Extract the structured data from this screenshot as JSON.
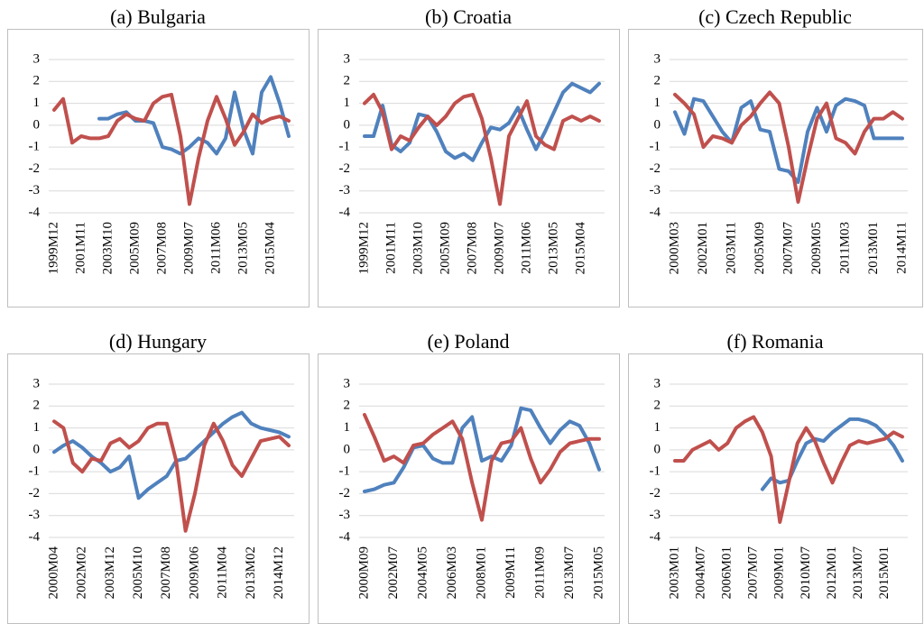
{
  "chart_data": [
    {
      "type": "line",
      "title": "(a) Bulgaria",
      "categories": [
        "1999M12",
        null,
        null,
        "2001M11",
        null,
        null,
        "2003M10",
        null,
        null,
        "2005M09",
        null,
        null,
        "2007M08",
        null,
        null,
        "2009M07",
        null,
        null,
        "2011M06",
        null,
        null,
        "2013M05",
        null,
        null,
        "2015M04",
        null,
        null
      ],
      "series": [
        {
          "color": "#4f81bd",
          "values": [
            null,
            null,
            null,
            null,
            null,
            0.3,
            0.3,
            0.5,
            0.6,
            0.2,
            0.2,
            0.1,
            -1.0,
            -1.1,
            -1.3,
            -1.0,
            -0.6,
            -0.8,
            -1.3,
            -0.6,
            1.5,
            -0.2,
            -1.3,
            1.5,
            2.2,
            1.0,
            -0.5
          ]
        },
        {
          "color": "#c0504d",
          "values": [
            0.7,
            1.2,
            -0.8,
            -0.5,
            -0.6,
            -0.6,
            -0.5,
            0.2,
            0.5,
            0.3,
            0.2,
            1.0,
            1.3,
            1.4,
            -0.5,
            -3.6,
            -1.5,
            0.2,
            1.3,
            0.3,
            -0.9,
            -0.3,
            0.5,
            0.1,
            0.3,
            0.4,
            0.2
          ]
        }
      ],
      "ylim": [
        -4,
        3
      ],
      "yticks": [
        3,
        2,
        1,
        0,
        -1,
        -2,
        -3,
        -4
      ],
      "grid": true
    },
    {
      "type": "line",
      "title": "(b) Croatia",
      "categories": [
        "1999M12",
        null,
        null,
        "2001M11",
        null,
        null,
        "2003M10",
        null,
        null,
        "2005M09",
        null,
        null,
        "2007M08",
        null,
        null,
        "2009M07",
        null,
        null,
        "2011M06",
        null,
        null,
        "2013M05",
        null,
        null,
        "2015M04",
        null,
        null
      ],
      "series": [
        {
          "color": "#4f81bd",
          "values": [
            -0.5,
            -0.5,
            0.9,
            -0.9,
            -1.2,
            -0.8,
            0.5,
            0.4,
            -0.3,
            -1.2,
            -1.5,
            -1.3,
            -1.6,
            -0.8,
            -0.1,
            -0.2,
            0.1,
            0.8,
            -0.2,
            -1.1,
            -0.3,
            0.6,
            1.5,
            1.9,
            1.7,
            1.5,
            1.9
          ]
        },
        {
          "color": "#c0504d",
          "values": [
            1.0,
            1.4,
            0.6,
            -1.1,
            -0.5,
            -0.7,
            -0.1,
            0.4,
            0.0,
            0.4,
            1.0,
            1.3,
            1.4,
            0.3,
            -1.5,
            -3.6,
            -0.5,
            0.3,
            1.1,
            -0.5,
            -0.9,
            -1.1,
            0.2,
            0.4,
            0.2,
            0.4,
            0.2
          ]
        }
      ],
      "ylim": [
        -4,
        3
      ],
      "yticks": [
        3,
        2,
        1,
        0,
        -1,
        -2,
        -3,
        -4
      ],
      "grid": true
    },
    {
      "type": "line",
      "title": "(c) Czech Republic",
      "categories": [
        "2000M03",
        null,
        null,
        "2002M01",
        null,
        null,
        "2003M11",
        null,
        null,
        "2005M09",
        null,
        null,
        "2007M07",
        null,
        null,
        "2009M05",
        null,
        null,
        "2011M03",
        null,
        null,
        "2013M01",
        null,
        null,
        "2014M11"
      ],
      "series": [
        {
          "color": "#4f81bd",
          "values": [
            0.6,
            -0.4,
            1.2,
            1.1,
            0.4,
            -0.3,
            -0.8,
            0.8,
            1.1,
            -0.2,
            -0.3,
            -2.0,
            -2.1,
            -2.6,
            -0.3,
            0.8,
            -0.3,
            0.9,
            1.2,
            1.1,
            0.9,
            -0.6,
            -0.6,
            -0.6,
            -0.6
          ]
        },
        {
          "color": "#c0504d",
          "values": [
            1.4,
            1.0,
            0.5,
            -1.0,
            -0.5,
            -0.6,
            -0.8,
            0.0,
            0.4,
            1.0,
            1.5,
            1.0,
            -1.0,
            -3.5,
            -1.5,
            0.3,
            1.0,
            -0.6,
            -0.8,
            -1.3,
            -0.3,
            0.3,
            0.3,
            0.6,
            0.3
          ]
        }
      ],
      "ylim": [
        -4,
        3
      ],
      "yticks": [
        3,
        2,
        1,
        0,
        -1,
        -2,
        -3,
        -4
      ],
      "grid": true
    },
    {
      "type": "line",
      "title": "(d) Hungary",
      "categories": [
        "2000M04",
        null,
        null,
        "2002M02",
        null,
        null,
        "2003M12",
        null,
        null,
        "2005M10",
        null,
        null,
        "2007M08",
        null,
        null,
        "2009M06",
        null,
        null,
        "2011M04",
        null,
        null,
        "2013M02",
        null,
        null,
        "2014M12",
        null
      ],
      "series": [
        {
          "color": "#4f81bd",
          "values": [
            -0.1,
            0.2,
            0.4,
            0.1,
            -0.3,
            -0.6,
            -1.0,
            -0.8,
            -0.3,
            -2.2,
            -1.8,
            -1.5,
            -1.2,
            -0.5,
            -0.4,
            0.0,
            0.4,
            0.8,
            1.2,
            1.5,
            1.7,
            1.2,
            1.0,
            0.9,
            0.8,
            0.6
          ]
        },
        {
          "color": "#c0504d",
          "values": [
            1.3,
            1.0,
            -0.6,
            -1.0,
            -0.4,
            -0.5,
            0.3,
            0.5,
            0.1,
            0.4,
            1.0,
            1.2,
            1.2,
            -0.5,
            -3.7,
            -2.0,
            0.2,
            1.2,
            0.4,
            -0.7,
            -1.2,
            -0.4,
            0.4,
            0.5,
            0.6,
            0.2
          ]
        }
      ],
      "ylim": [
        -4,
        3
      ],
      "yticks": [
        3,
        2,
        1,
        0,
        -1,
        -2,
        -3,
        -4
      ],
      "grid": true
    },
    {
      "type": "line",
      "title": "(e) Poland",
      "categories": [
        "2000M09",
        null,
        null,
        "2002M07",
        null,
        null,
        "2004M05",
        null,
        null,
        "2006M03",
        null,
        null,
        "2008M01",
        null,
        null,
        "2009M11",
        null,
        null,
        "2011M09",
        null,
        null,
        "2013M07",
        null,
        null,
        "2015M05"
      ],
      "series": [
        {
          "color": "#4f81bd",
          "values": [
            -1.9,
            -1.8,
            -1.6,
            -1.5,
            -0.8,
            0.1,
            0.2,
            -0.4,
            -0.6,
            -0.6,
            1.0,
            1.5,
            -0.5,
            -0.3,
            -0.5,
            0.2,
            1.9,
            1.8,
            1.0,
            0.3,
            0.9,
            1.3,
            1.1,
            0.3,
            -0.9
          ]
        },
        {
          "color": "#c0504d",
          "values": [
            1.6,
            0.6,
            -0.5,
            -0.3,
            -0.6,
            0.2,
            0.3,
            0.7,
            1.0,
            1.3,
            0.5,
            -1.5,
            -3.2,
            -0.5,
            0.3,
            0.4,
            1.0,
            -0.4,
            -1.5,
            -0.9,
            -0.1,
            0.3,
            0.4,
            0.5,
            0.5
          ]
        }
      ],
      "ylim": [
        -4,
        3
      ],
      "yticks": [
        3,
        2,
        1,
        0,
        -1,
        -2,
        -3,
        -4
      ],
      "grid": true
    },
    {
      "type": "line",
      "title": "(f) Romania",
      "categories": [
        "2003M01",
        null,
        null,
        "2004M07",
        null,
        null,
        "2006M01",
        null,
        null,
        "2007M07",
        null,
        null,
        "2009M01",
        null,
        null,
        "2010M07",
        null,
        null,
        "2012M01",
        null,
        null,
        "2013M07",
        null,
        null,
        "2015M01",
        null,
        null
      ],
      "series": [
        {
          "color": "#4f81bd",
          "values": [
            null,
            null,
            null,
            null,
            null,
            null,
            null,
            null,
            null,
            null,
            -1.8,
            -1.3,
            -1.5,
            -1.4,
            -0.5,
            0.3,
            0.5,
            0.4,
            0.8,
            1.1,
            1.4,
            1.4,
            1.3,
            1.1,
            0.7,
            0.2,
            -0.5
          ]
        },
        {
          "color": "#c0504d",
          "values": [
            -0.5,
            -0.5,
            0.0,
            0.2,
            0.4,
            0.0,
            0.3,
            1.0,
            1.3,
            1.5,
            0.8,
            -0.3,
            -3.3,
            -1.5,
            0.3,
            1.0,
            0.4,
            -0.6,
            -1.5,
            -0.6,
            0.2,
            0.4,
            0.3,
            0.4,
            0.5,
            0.8,
            0.6
          ]
        }
      ],
      "ylim": [
        -4,
        3
      ],
      "yticks": [
        3,
        2,
        1,
        0,
        -1,
        -2,
        -3,
        -4
      ],
      "grid": true
    }
  ]
}
